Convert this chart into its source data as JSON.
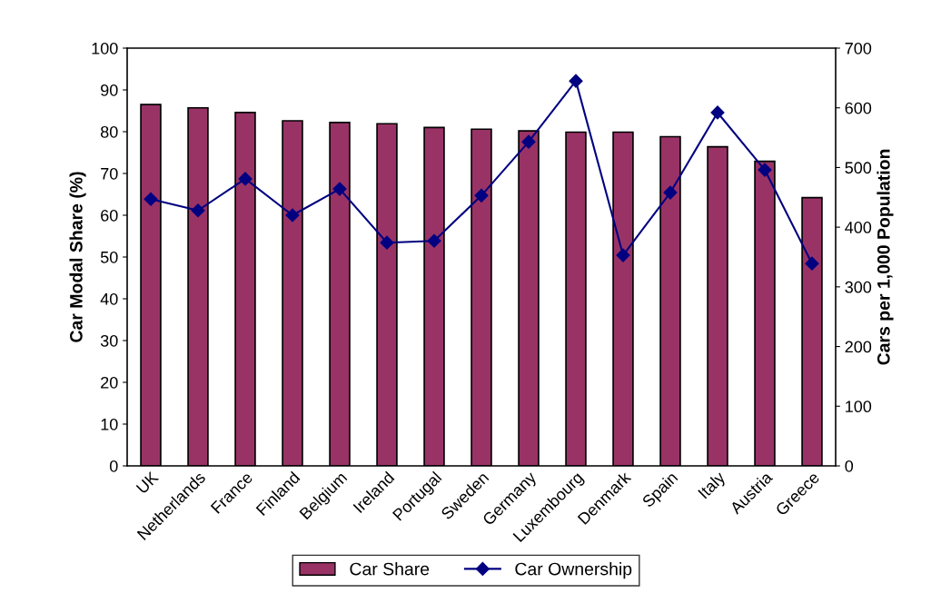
{
  "chart_data": {
    "type": "bar",
    "ylabel": "Car Modal Share (%)",
    "y2label": "Cars per 1,000 Population",
    "categories": [
      "UK",
      "Netherlands",
      "France",
      "Finland",
      "Belgium",
      "Ireland",
      "Portugal",
      "Sweden",
      "Germany",
      "Luxembourg",
      "Denmark",
      "Spain",
      "Italy",
      "Austria",
      "Greece"
    ],
    "series": [
      {
        "name": "Car Share",
        "color": "#993366",
        "values": [
          86.5,
          85.7,
          84.6,
          82.6,
          82.2,
          81.9,
          81.0,
          80.6,
          80.2,
          79.9,
          79.9,
          78.8,
          76.4,
          72.9,
          64.2
        ]
      },
      {
        "name": "Car Ownership",
        "type": "line",
        "axis": "y2",
        "color": "#000080",
        "marker": "diamond",
        "values": [
          447,
          428,
          481,
          420,
          464,
          374,
          377,
          453,
          543,
          645,
          353,
          458,
          592,
          496,
          339
        ]
      }
    ],
    "ylim": [
      0,
      100
    ],
    "yticks": [
      0,
      10,
      20,
      30,
      40,
      50,
      60,
      70,
      80,
      90,
      100
    ],
    "y2lim": [
      0,
      700
    ],
    "y2ticks": [
      0,
      100,
      200,
      300,
      400,
      500,
      600,
      700
    ],
    "grid": false,
    "legend": "bottom"
  }
}
